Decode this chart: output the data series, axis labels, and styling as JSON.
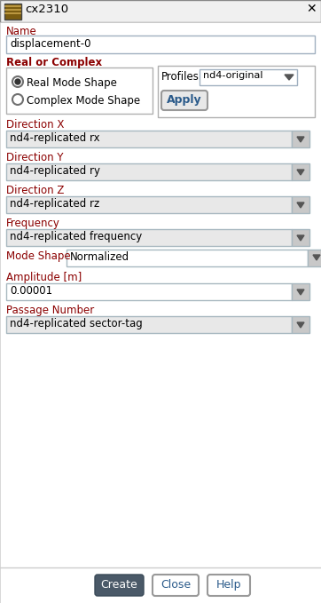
{
  "title": "cx2310",
  "window_bg": "#f0f0f0",
  "content_bg": "#ffffff",
  "dark_red": "#8b0000",
  "dropdown_bg": "#e8e8e8",
  "input_bg": "#ffffff",
  "create_bg": "#4a5968",
  "create_fg": "#ffffff",
  "fields": {
    "name_label": "Name",
    "name_value": "displacement-0",
    "section_label": "Real or Complex",
    "radio1": "Real Mode Shape",
    "radio2": "Complex Mode Shape",
    "profiles_label": "Profiles",
    "profiles_value": "nd4-original",
    "apply_label": "Apply",
    "dir_x_label": "Direction X",
    "dir_x_value": "nd4-replicated rx",
    "dir_y_label": "Direction Y",
    "dir_y_value": "nd4-replicated ry",
    "dir_z_label": "Direction Z",
    "dir_z_value": "nd4-replicated rz",
    "freq_label": "Frequency",
    "freq_value": "nd4-replicated frequency",
    "mode_shape_label": "Mode Shape",
    "mode_shape_value": "Normalized",
    "amplitude_label": "Amplitude [m]",
    "amplitude_value": "0.00001",
    "passage_label": "Passage Number",
    "passage_value": "nd4-replicated sector-tag"
  },
  "buttons": [
    "Create",
    "Close",
    "Help"
  ]
}
